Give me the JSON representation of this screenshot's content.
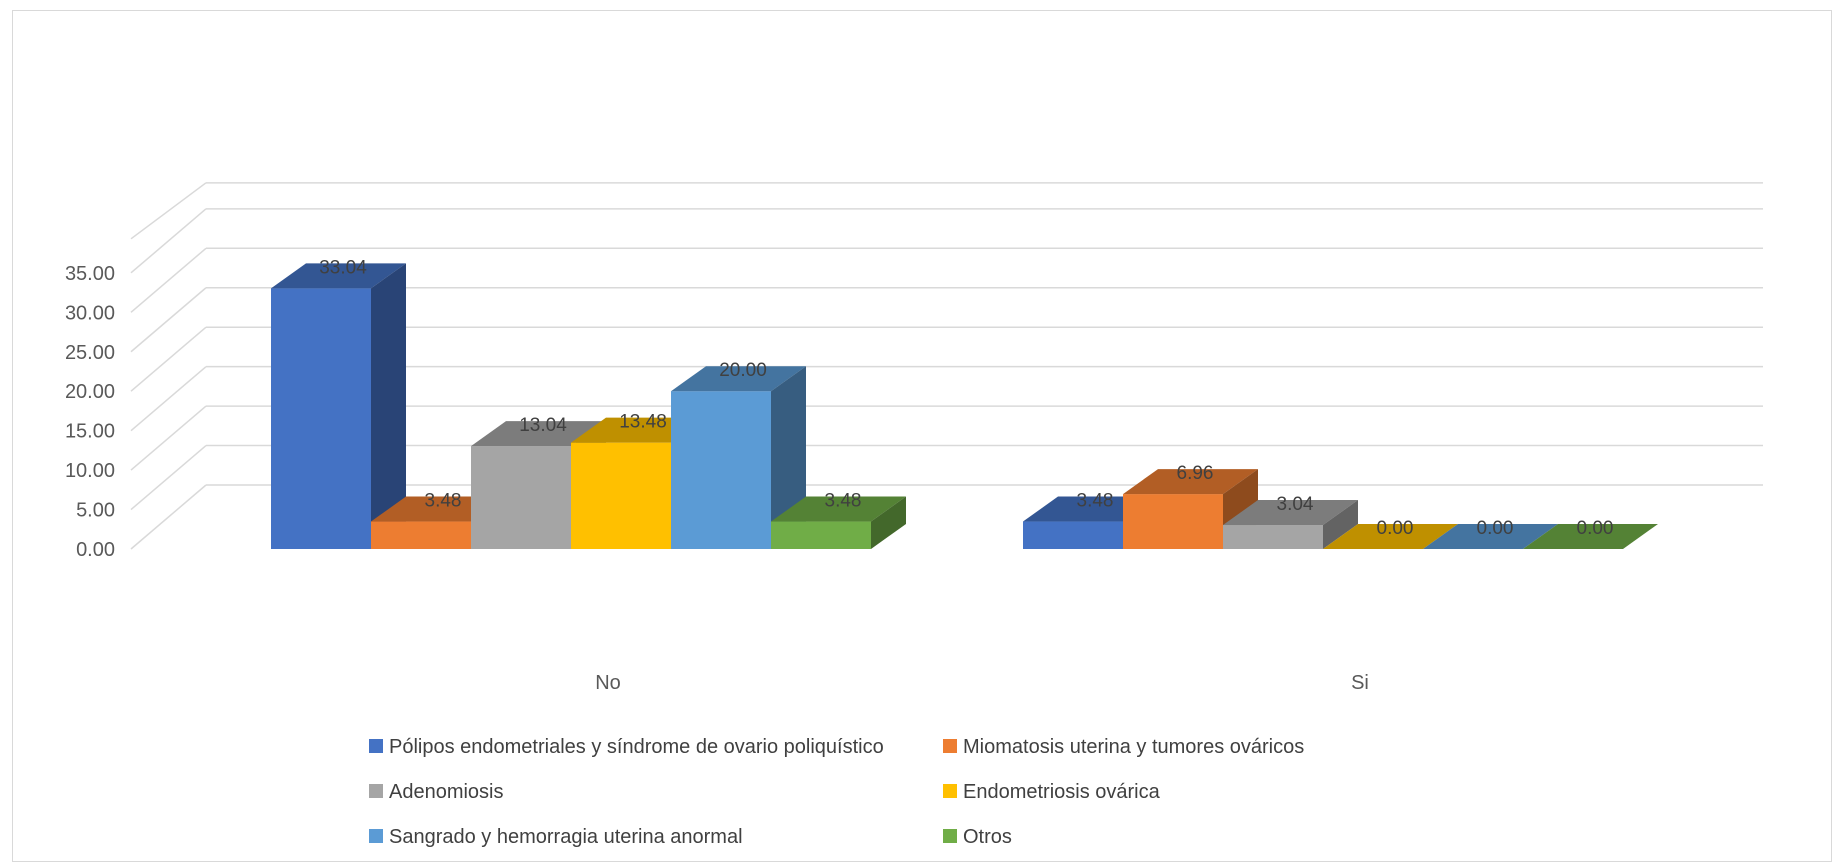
{
  "chart_data": {
    "type": "bar",
    "categories": [
      "No",
      "Si"
    ],
    "series": [
      {
        "name": "Pólipos endometriales y síndrome de ovario poliquístico",
        "values": [
          33.04,
          3.48
        ],
        "labels": [
          "33.04",
          "3.48"
        ],
        "color": "#4472C4"
      },
      {
        "name": "Miomatosis uterina y tumores ováricos",
        "values": [
          3.48,
          6.96
        ],
        "labels": [
          "3.48",
          "6.96"
        ],
        "color": "#ED7D31"
      },
      {
        "name": "Adenomiosis",
        "values": [
          13.04,
          3.04
        ],
        "labels": [
          "13.04",
          "3.04"
        ],
        "color": "#A5A5A5"
      },
      {
        "name": "Endometriosis ovárica",
        "values": [
          13.48,
          0.0
        ],
        "labels": [
          "13.48",
          "0.00"
        ],
        "color": "#FFC000"
      },
      {
        "name": "Sangrado y hemorragia uterina anormal",
        "values": [
          20.0,
          0.0
        ],
        "labels": [
          "20.00",
          "0.00"
        ],
        "color": "#5B9BD5"
      },
      {
        "name": "Otros",
        "values": [
          3.48,
          0.0
        ],
        "labels": [
          "3.48",
          "0.00"
        ],
        "color": "#70AD47"
      }
    ],
    "yticks": [
      "0.00",
      "5.00",
      "10.00",
      "15.00",
      "20.00",
      "25.00",
      "30.00",
      "35.00"
    ],
    "ylim": [
      0,
      35
    ],
    "title": "",
    "xlabel": "",
    "ylabel": "",
    "grid": true,
    "style": "3d-clustered-column",
    "legend_position": "bottom"
  }
}
